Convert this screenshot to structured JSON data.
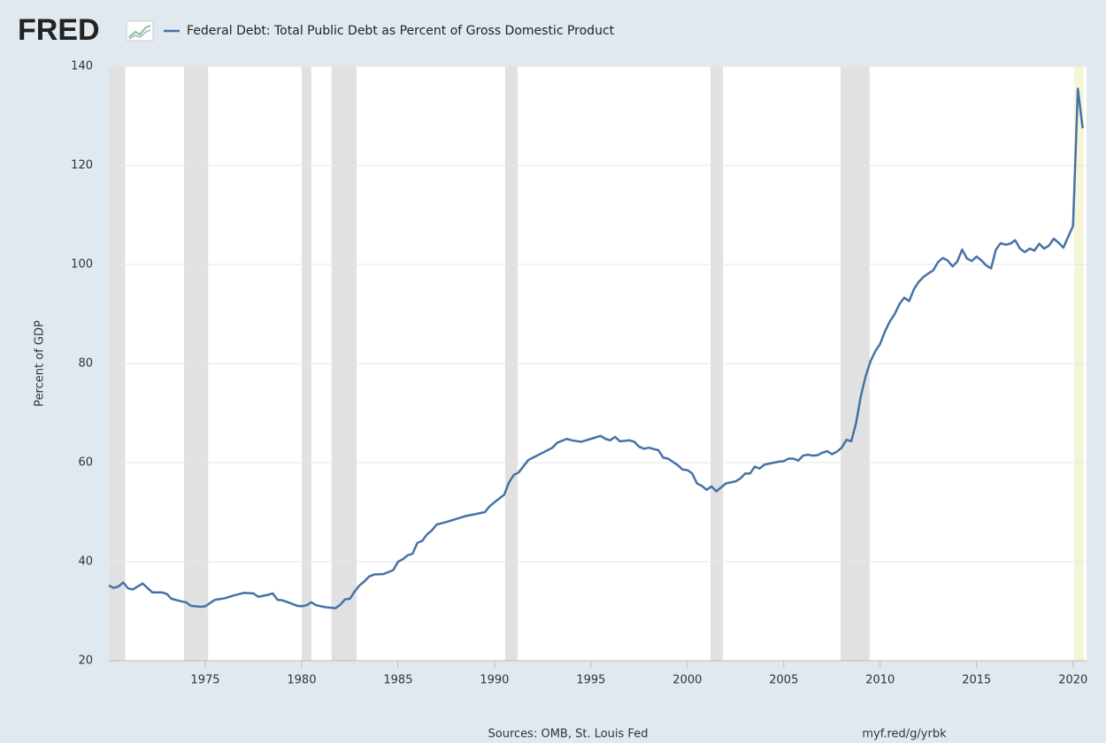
{
  "logo": "FRED",
  "chart_data": {
    "type": "line",
    "y_label": "Percent of GDP",
    "sources": "Sources: OMB, St. Louis Fed",
    "short_url": "myf.red/g/yrbk",
    "x": [
      1970.0,
      1970.25,
      1970.5,
      1970.75,
      1971.0,
      1971.25,
      1971.75,
      1972.25,
      1972.75,
      1973.0,
      1973.25,
      1973.75,
      1974.0,
      1974.25,
      1974.75,
      1975.0,
      1975.5,
      1976.0,
      1976.5,
      1977.0,
      1977.5,
      1977.75,
      1978.25,
      1978.5,
      1978.75,
      1979.0,
      1979.5,
      1979.75,
      1980.0,
      1980.25,
      1980.5,
      1980.75,
      1981.25,
      1981.75,
      1982.0,
      1982.25,
      1982.5,
      1982.75,
      1983.0,
      1983.25,
      1983.5,
      1983.75,
      1984.25,
      1984.75,
      1985.0,
      1985.25,
      1985.5,
      1985.75,
      1986.0,
      1986.25,
      1986.5,
      1986.75,
      1987.0,
      1987.5,
      1988.0,
      1988.5,
      1989.0,
      1989.5,
      1989.75,
      1990.0,
      1990.5,
      1990.75,
      1991.0,
      1991.25,
      1991.75,
      1992.0,
      1992.5,
      1993.0,
      1993.25,
      1993.75,
      1994.0,
      1994.5,
      1995.0,
      1995.5,
      1995.75,
      1996.0,
      1996.25,
      1996.5,
      1996.75,
      1997.0,
      1997.25,
      1997.5,
      1997.75,
      1998.0,
      1998.5,
      1998.75,
      1999.0,
      1999.5,
      1999.75,
      2000.0,
      2000.25,
      2000.5,
      2000.75,
      2001.0,
      2001.25,
      2001.5,
      2001.75,
      2002.0,
      2002.5,
      2002.75,
      2003.0,
      2003.25,
      2003.5,
      2003.75,
      2004.0,
      2004.5,
      2004.75,
      2005.0,
      2005.25,
      2005.5,
      2005.75,
      2006.0,
      2006.25,
      2006.5,
      2006.75,
      2007.0,
      2007.25,
      2007.5,
      2007.75,
      2008.0,
      2008.25,
      2008.5,
      2008.75,
      2009.0,
      2009.25,
      2009.5,
      2009.75,
      2010.0,
      2010.25,
      2010.5,
      2010.75,
      2011.0,
      2011.25,
      2011.5,
      2011.75,
      2012.0,
      2012.25,
      2012.5,
      2012.75,
      2013.0,
      2013.25,
      2013.5,
      2013.75,
      2014.0,
      2014.25,
      2014.5,
      2014.75,
      2015.0,
      2015.25,
      2015.5,
      2015.75,
      2016.0,
      2016.25,
      2016.5,
      2016.75,
      2017.0,
      2017.25,
      2017.5,
      2017.75,
      2018.0,
      2018.25,
      2018.5,
      2018.75,
      2019.0,
      2019.25,
      2019.5,
      2019.75,
      2020.0,
      2020.25,
      2020.5
    ],
    "series": [
      {
        "name": "Federal Debt: Total Public Debt as Percent of Gross Domestic Product",
        "color": "#4572a7",
        "values": [
          35.2,
          34.7,
          35.0,
          35.8,
          34.6,
          34.4,
          35.6,
          33.8,
          33.8,
          33.5,
          32.5,
          32.0,
          31.8,
          31.1,
          30.9,
          31.0,
          32.3,
          32.6,
          33.2,
          33.7,
          33.6,
          32.9,
          33.3,
          33.6,
          32.3,
          32.2,
          31.5,
          31.1,
          31.0,
          31.2,
          31.8,
          31.2,
          30.8,
          30.6,
          31.3,
          32.4,
          32.5,
          34.0,
          35.2,
          36.0,
          37.0,
          37.4,
          37.5,
          38.3,
          40.0,
          40.5,
          41.3,
          41.6,
          43.8,
          44.2,
          45.5,
          46.3,
          47.5,
          48.0,
          48.6,
          49.2,
          49.6,
          50.0,
          51.2,
          52.0,
          53.5,
          56.0,
          57.5,
          58.0,
          60.5,
          61.0,
          62.0,
          63.0,
          64.0,
          64.8,
          64.5,
          64.2,
          64.8,
          65.4,
          64.8,
          64.5,
          65.2,
          64.3,
          64.4,
          64.5,
          64.2,
          63.2,
          62.8,
          63.0,
          62.5,
          61.0,
          60.8,
          59.5,
          58.6,
          58.5,
          57.8,
          55.8,
          55.3,
          54.5,
          55.2,
          54.2,
          55.0,
          55.8,
          56.2,
          56.8,
          57.8,
          57.8,
          59.2,
          58.8,
          59.6,
          60.0,
          60.2,
          60.3,
          60.8,
          60.8,
          60.4,
          61.4,
          61.6,
          61.4,
          61.5,
          62.0,
          62.3,
          61.7,
          62.2,
          63.0,
          64.6,
          64.3,
          68.0,
          73.5,
          77.5,
          80.5,
          82.5,
          84.0,
          86.5,
          88.5,
          90.0,
          92.0,
          93.3,
          92.6,
          95.0,
          96.5,
          97.5,
          98.2,
          98.8,
          100.5,
          101.3,
          100.8,
          99.6,
          100.6,
          103.0,
          101.2,
          100.7,
          101.6,
          100.8,
          99.8,
          99.2,
          103.0,
          104.3,
          104.0,
          104.2,
          104.9,
          103.2,
          102.5,
          103.2,
          102.8,
          104.2,
          103.2,
          103.8,
          105.2,
          104.4,
          103.4,
          105.6,
          107.8,
          135.5,
          127.5
        ]
      }
    ],
    "xlim": [
      1970,
      2020.7
    ],
    "xticks": [
      1975,
      1980,
      1985,
      1990,
      1995,
      2000,
      2005,
      2010,
      2015,
      2020
    ],
    "ylim": [
      20,
      140
    ],
    "yticks": [
      20,
      40,
      60,
      80,
      100,
      120,
      140
    ],
    "grid": true,
    "recessions": [
      {
        "start": 1970.0,
        "end": 1970.85,
        "color": "#e1e1e1"
      },
      {
        "start": 1973.9,
        "end": 1975.15,
        "color": "#e1e1e1"
      },
      {
        "start": 1980.0,
        "end": 1980.5,
        "color": "#e1e1e1"
      },
      {
        "start": 1981.55,
        "end": 1982.85,
        "color": "#e1e1e1"
      },
      {
        "start": 1990.55,
        "end": 1991.2,
        "color": "#e1e1e1"
      },
      {
        "start": 2001.2,
        "end": 2001.85,
        "color": "#e1e1e1"
      },
      {
        "start": 2007.95,
        "end": 2009.45,
        "color": "#e1e1e1"
      },
      {
        "start": 2020.05,
        "end": 2020.55,
        "color": "#f5f5d8"
      }
    ]
  }
}
